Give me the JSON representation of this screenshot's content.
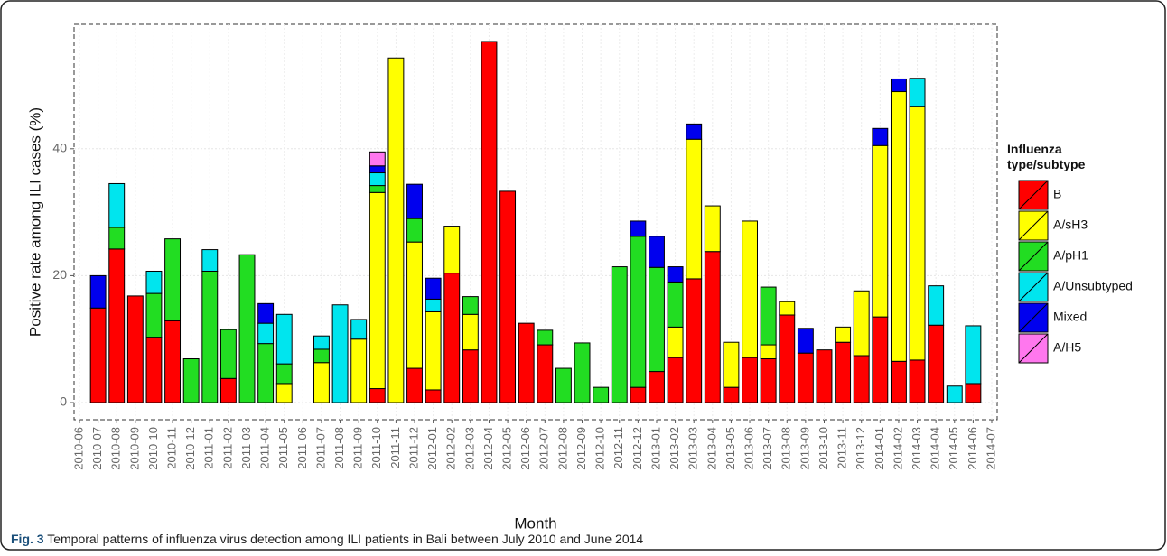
{
  "chart_data": {
    "type": "stacked_bar",
    "y_label": "Positive rate among ILI cases (%)",
    "x_label": "Month",
    "legend_title": [
      "Influenza",
      "type/subtype"
    ],
    "caption_label": "Fig. 3",
    "caption_text": "Temporal patterns of influenza virus detection among ILI patients in Bali between July 2010 and June 2014",
    "categories": [
      "2010-06",
      "2010-07",
      "2010-08",
      "2010-09",
      "2010-10",
      "2010-11",
      "2010-12",
      "2011-01",
      "2011-02",
      "2011-03",
      "2011-04",
      "2011-05",
      "2011-06",
      "2011-07",
      "2011-08",
      "2011-09",
      "2011-10",
      "2011-11",
      "2011-12",
      "2012-01",
      "2012-02",
      "2012-03",
      "2012-04",
      "2012-05",
      "2012-06",
      "2012-07",
      "2012-08",
      "2012-09",
      "2012-10",
      "2012-11",
      "2012-12",
      "2013-01",
      "2013-02",
      "2013-03",
      "2013-04",
      "2013-05",
      "2013-06",
      "2013-07",
      "2013-08",
      "2013-09",
      "2013-10",
      "2013-11",
      "2013-12",
      "2014-01",
      "2014-02",
      "2014-03",
      "2014-04",
      "2014-05",
      "2014-06",
      "2014-07"
    ],
    "series": [
      {
        "name": "B",
        "color": "#ff0000",
        "values": [
          0,
          14.9,
          24.2,
          16.8,
          10.3,
          12.9,
          0,
          0,
          3.8,
          0,
          0,
          0,
          0,
          0,
          0,
          0,
          2.2,
          0,
          5.4,
          2.0,
          20.4,
          8.3,
          56.9,
          33.3,
          12.5,
          9.1,
          0,
          0,
          0,
          0,
          2.4,
          4.9,
          7.1,
          19.5,
          23.8,
          2.4,
          7.1,
          6.9,
          13.8,
          7.8,
          8.3,
          9.5,
          7.4,
          13.5,
          6.5,
          6.7,
          12.2,
          0,
          3.0,
          0
        ]
      },
      {
        "name": "A/sH3",
        "color": "#ffff00",
        "values": [
          0,
          0,
          0,
          0,
          0,
          0,
          0,
          0,
          0,
          0,
          0,
          3.0,
          0,
          6.3,
          0,
          10.0,
          30.9,
          54.3,
          19.9,
          12.3,
          7.4,
          5.6,
          0,
          0,
          0,
          0,
          0,
          0,
          0,
          0,
          0,
          0,
          4.8,
          22.0,
          7.2,
          7.1,
          21.5,
          2.2,
          2.1,
          0,
          0,
          2.4,
          10.2,
          27.0,
          42.5,
          40.0,
          0,
          0,
          0,
          0
        ]
      },
      {
        "name": "A/pH1",
        "color": "#22dd22",
        "values": [
          0,
          0,
          3.4,
          0,
          6.9,
          12.9,
          6.9,
          20.7,
          7.7,
          23.3,
          9.3,
          3.1,
          0,
          2.1,
          0,
          0,
          1.1,
          0,
          3.7,
          0,
          0,
          2.8,
          0,
          0,
          0,
          2.3,
          5.4,
          9.4,
          2.4,
          21.4,
          23.8,
          16.4,
          7.1,
          0,
          0,
          0,
          0,
          9.1,
          0,
          0,
          0,
          0,
          0,
          0,
          0,
          0,
          0,
          0,
          0,
          0
        ]
      },
      {
        "name": "A/Unsubtyped",
        "color": "#00e5ee",
        "values": [
          0,
          0,
          6.9,
          0,
          3.5,
          0,
          0,
          3.4,
          0,
          0,
          3.2,
          7.8,
          0,
          2.1,
          15.4,
          3.1,
          2.0,
          0,
          0,
          2.0,
          0,
          0,
          0,
          0,
          0,
          0,
          0,
          0,
          0,
          0,
          0,
          0,
          0,
          0,
          0,
          0,
          0,
          0,
          0,
          0,
          0,
          0,
          0,
          0,
          0,
          4.4,
          6.2,
          2.6,
          9.1,
          0
        ]
      },
      {
        "name": "Mixed",
        "color": "#0000ee",
        "values": [
          0,
          5.1,
          0,
          0,
          0,
          0,
          0,
          0,
          0,
          0,
          3.1,
          0,
          0,
          0,
          0,
          0,
          1.1,
          0,
          5.4,
          3.3,
          0,
          0,
          0,
          0,
          0,
          0,
          0,
          0,
          0,
          0,
          2.4,
          4.9,
          2.4,
          2.4,
          0,
          0,
          0,
          0,
          0,
          3.9,
          0,
          0,
          0,
          2.7,
          2.0,
          0,
          0,
          0,
          0,
          0
        ]
      },
      {
        "name": "A/H5",
        "color": "#ff77ee",
        "values": [
          0,
          0,
          0,
          0,
          0,
          0,
          0,
          0,
          0,
          0,
          0,
          0,
          0,
          0,
          0,
          0,
          2.2,
          0,
          0,
          0,
          0,
          0,
          0,
          0,
          0,
          0,
          0,
          0,
          0,
          0,
          0,
          0,
          0,
          0,
          0,
          0,
          0,
          0,
          0,
          0,
          0,
          0,
          0,
          0,
          0,
          0,
          0,
          0,
          0,
          0
        ]
      }
    ],
    "ylim": [
      -2.7,
      59.6
    ],
    "yticks": [
      0,
      20,
      40
    ],
    "grid": true
  }
}
